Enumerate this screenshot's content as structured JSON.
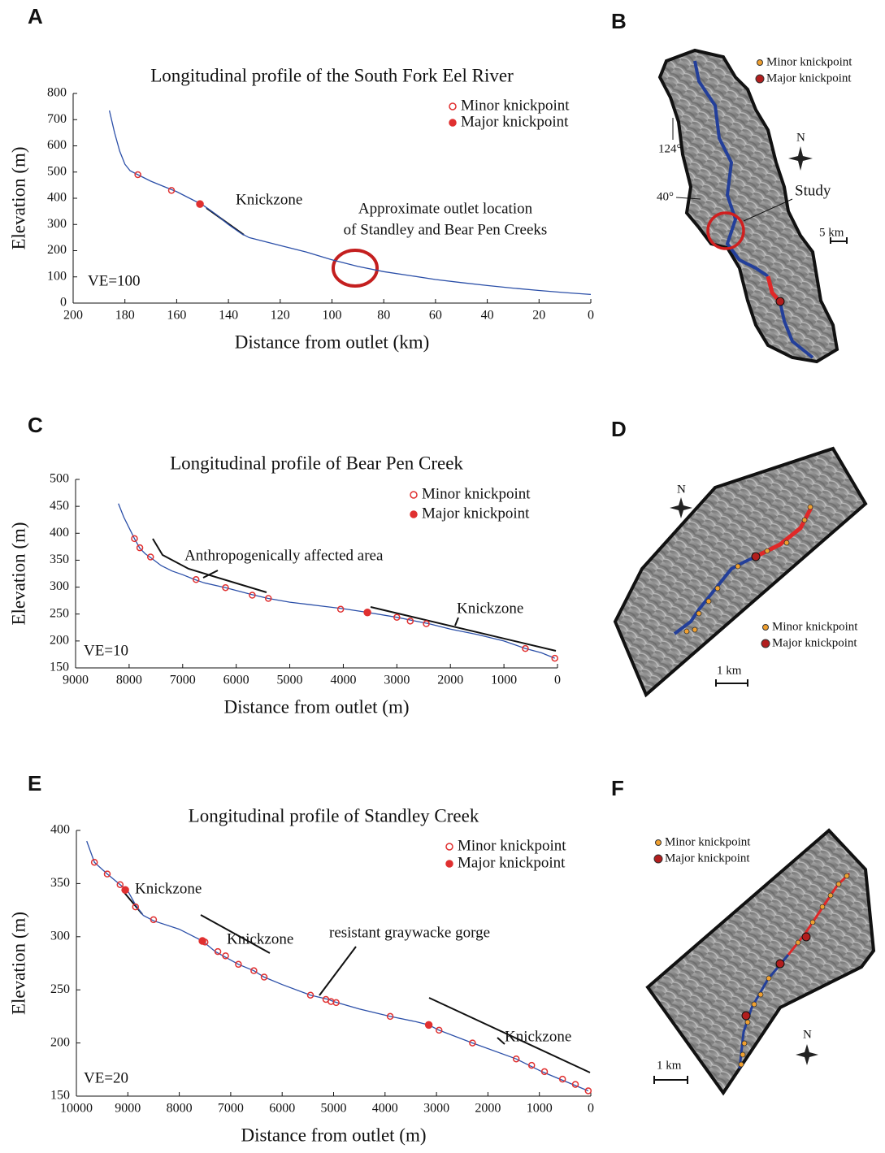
{
  "panel_labels": [
    "A",
    "B",
    "C",
    "D",
    "E",
    "F"
  ],
  "chart_data": [
    {
      "type": "line",
      "title": "Longitudinal profile of the South Fork Eel River",
      "xlabel": "Distance from outlet (km)",
      "ylabel": "Elevation (m)",
      "xlim": [
        200,
        0
      ],
      "xticks": [
        200,
        180,
        160,
        140,
        120,
        100,
        80,
        60,
        40,
        20,
        0
      ],
      "ylim": [
        0,
        800
      ],
      "yticks": [
        0,
        100,
        200,
        300,
        400,
        500,
        600,
        700,
        800
      ],
      "annotations": [
        "Knickzone",
        "Approximate outlet location",
        "of Standley and Bear Pen Creeks",
        "VE=100"
      ],
      "series": [
        {
          "color": "#2b4fa8",
          "x": [
            186,
            184,
            182,
            180,
            178,
            175,
            170,
            165,
            160,
            155,
            150,
            145,
            140,
            135,
            132,
            120,
            110,
            100,
            90,
            80,
            70,
            60,
            50,
            40,
            30,
            20,
            10,
            0
          ],
          "values": [
            735,
            650,
            580,
            530,
            505,
            490,
            465,
            445,
            425,
            400,
            375,
            340,
            300,
            265,
            250,
            220,
            195,
            165,
            140,
            120,
            105,
            90,
            78,
            67,
            57,
            48,
            40,
            33
          ]
        },
        {
          "name": "Minor knickpoint",
          "type": "scatter",
          "color": "#e03030",
          "x": [
            175,
            162
          ],
          "values": [
            490,
            430
          ]
        },
        {
          "name": "Major knickpoint",
          "type": "scatter",
          "color": "#e03030",
          "x": [
            151
          ],
          "values": [
            378
          ]
        }
      ]
    },
    {
      "type": "line",
      "title": "Longitudinal profile of Bear Pen Creek",
      "xlabel": "Distance from outlet (m)",
      "ylabel": "Elevation (m)",
      "xlim": [
        9000,
        0
      ],
      "xticks": [
        9000,
        8000,
        7000,
        6000,
        5000,
        4000,
        3000,
        2000,
        1000,
        0
      ],
      "ylim": [
        150,
        500
      ],
      "yticks": [
        150,
        200,
        250,
        300,
        350,
        400,
        450,
        500
      ],
      "annotations": [
        "Anthropogenically affected area",
        "Knickzone",
        "VE=10"
      ],
      "series": [
        {
          "color": "#2b4fa8",
          "x": [
            8200,
            8100,
            8000,
            7900,
            7800,
            7700,
            7600,
            7400,
            7200,
            7000,
            6800,
            6600,
            6200,
            5700,
            5400,
            5000,
            4500,
            4000,
            3600,
            3000,
            2700,
            2400,
            2000,
            1500,
            1000,
            600,
            300,
            50
          ],
          "values": [
            455,
            430,
            410,
            390,
            372,
            362,
            355,
            340,
            330,
            323,
            315,
            308,
            299,
            286,
            279,
            272,
            266,
            260,
            254,
            244,
            238,
            232,
            222,
            212,
            200,
            186,
            178,
            168
          ]
        },
        {
          "name": "Minor knickpoint",
          "type": "scatter",
          "color": "#e03030",
          "x": [
            7900,
            7800,
            7600,
            6750,
            6200,
            5700,
            5400,
            4050,
            3000,
            2750,
            2450,
            600,
            50
          ],
          "values": [
            390,
            373,
            356,
            314,
            299,
            285,
            279,
            259,
            244,
            237,
            232,
            186,
            168
          ]
        },
        {
          "name": "Major knickpoint",
          "type": "scatter",
          "color": "#e03030",
          "x": [
            3550
          ],
          "values": [
            253
          ]
        }
      ]
    },
    {
      "type": "line",
      "title": "Longitudinal profile of Standley Creek",
      "xlabel": "Distance from outlet (m)",
      "ylabel": "Elevation (m)",
      "xlim": [
        10000,
        0
      ],
      "xticks": [
        10000,
        9000,
        8000,
        7000,
        6000,
        5000,
        4000,
        3000,
        2000,
        1000,
        0
      ],
      "ylim": [
        150,
        400
      ],
      "yticks": [
        150,
        200,
        250,
        300,
        350,
        400
      ],
      "annotations": [
        "Knickzone",
        "Knickzone",
        "resistant graywacke gorge",
        "Knickzone",
        "VE=20"
      ],
      "series": [
        {
          "color": "#2b4fa8",
          "x": [
            9800,
            9650,
            9400,
            9150,
            9000,
            8850,
            8700,
            8500,
            8000,
            7550,
            7300,
            7150,
            6850,
            6550,
            6350,
            6000,
            5450,
            5100,
            5000,
            4500,
            3900,
            3400,
            3150,
            2950,
            2300,
            1450,
            1200,
            950,
            600,
            350,
            50
          ],
          "values": [
            390,
            370,
            359,
            349,
            343,
            330,
            320,
            315,
            307,
            296,
            286,
            282,
            274,
            268,
            262,
            255,
            245,
            241,
            239,
            232,
            225,
            220,
            217,
            212,
            200,
            185,
            179,
            173,
            166,
            161,
            155
          ]
        },
        {
          "name": "Minor knickpoint",
          "type": "scatter",
          "color": "#e03030",
          "x": [
            9650,
            9400,
            9150,
            8850,
            8500,
            7500,
            7250,
            7100,
            6850,
            6550,
            6350,
            5450,
            5150,
            5050,
            4950,
            3900,
            2950,
            2300,
            1450,
            1150,
            900,
            550,
            300,
            50
          ],
          "values": [
            370,
            359,
            349,
            328,
            316,
            295,
            286,
            282,
            274,
            268,
            262,
            245,
            241,
            239,
            238,
            225,
            212,
            200,
            185,
            179,
            173,
            166,
            161,
            155
          ]
        },
        {
          "name": "Major knickpoint",
          "type": "scatter",
          "color": "#e03030",
          "x": [
            9050,
            7550,
            3150
          ],
          "values": [
            344,
            296,
            217
          ]
        }
      ]
    }
  ],
  "maps": [
    {
      "legend": [
        "Minor knickpoint",
        "Major knickpoint"
      ],
      "longitude": "124°",
      "latitude": "40°",
      "north": "N",
      "study": "Study",
      "scale": "5 km"
    },
    {
      "legend": [
        "Minor knickpoint",
        "Major knickpoint"
      ],
      "north": "N",
      "scale": "1 km"
    },
    {
      "legend": [
        "Minor knickpoint",
        "Major knickpoint"
      ],
      "north": "N",
      "scale": "1 km"
    }
  ]
}
